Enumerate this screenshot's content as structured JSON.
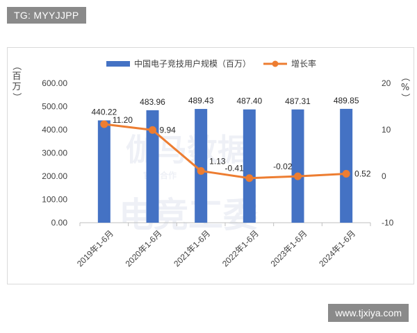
{
  "header": {
    "tag": "TG: MYYJJPP"
  },
  "footer": {
    "url": "www.tjxiya.com"
  },
  "watermark": {
    "line1": "伽马数据",
    "line2": "电竞工委",
    "line3": "官方合作"
  },
  "colors": {
    "bar": "#4472C4",
    "line": "#ED7D31",
    "grid": "#e6e6e6"
  },
  "chart_data": {
    "type": "bar",
    "categories": [
      "2019年1-6月",
      "2020年1-6月",
      "2021年1-6月",
      "2022年1-6月",
      "2023年1-6月",
      "2024年1-6月"
    ],
    "series": [
      {
        "name": "中国电子竞技用户规模（百万）",
        "type": "bar",
        "axis": "left",
        "values": [
          440.22,
          483.96,
          489.43,
          487.4,
          487.31,
          489.85
        ],
        "labels": [
          "440.22",
          "483.96",
          "489.43",
          "487.40",
          "487.31",
          "489.85"
        ]
      },
      {
        "name": "增长率",
        "type": "line",
        "axis": "right",
        "values": [
          11.2,
          9.94,
          1.13,
          -0.41,
          -0.02,
          0.52
        ],
        "labels": [
          "11.20",
          "9.94",
          "1.13",
          "-0.41",
          "-0.02",
          "0.52"
        ]
      }
    ],
    "y_left": {
      "label": "（百万）",
      "range": [
        0,
        600
      ],
      "ticks": [
        "0.00",
        "100.00",
        "200.00",
        "300.00",
        "400.00",
        "500.00",
        "600.00"
      ]
    },
    "y_right": {
      "label": "（%）",
      "range": [
        -10,
        20
      ],
      "ticks": [
        "-10",
        "0",
        "10",
        "20"
      ]
    },
    "grid": false,
    "legend": "top-center"
  }
}
